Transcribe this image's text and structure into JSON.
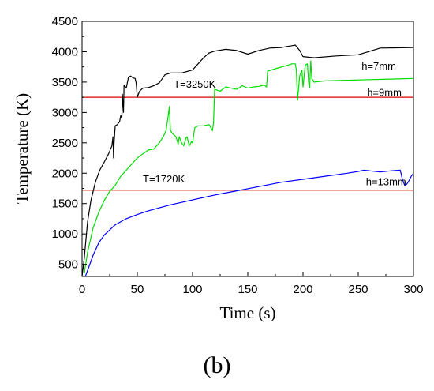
{
  "panel_label": "(b)",
  "chart_data": {
    "type": "line",
    "xlabel": "Time (s)",
    "ylabel": "Temperature (K)",
    "xlim": [
      0,
      300
    ],
    "ylim": [
      300,
      4500
    ],
    "xticks": [
      0,
      50,
      100,
      150,
      200,
      250,
      300
    ],
    "yticks": [
      500,
      1000,
      1500,
      2000,
      2500,
      3000,
      3500,
      4000,
      4500
    ],
    "grid": false,
    "series": [
      {
        "name": "h=7mm",
        "color": "#000000",
        "points": [
          [
            0,
            300
          ],
          [
            2,
            600
          ],
          [
            5,
            1200
          ],
          [
            8,
            1550
          ],
          [
            12,
            1850
          ],
          [
            16,
            2050
          ],
          [
            20,
            2180
          ],
          [
            24,
            2320
          ],
          [
            27,
            2450
          ],
          [
            28,
            2600
          ],
          [
            28.5,
            2250
          ],
          [
            29,
            2500
          ],
          [
            30,
            2780
          ],
          [
            32,
            2800
          ],
          [
            34,
            2850
          ],
          [
            35,
            2950
          ],
          [
            36,
            2900
          ],
          [
            36.5,
            3300
          ],
          [
            37.5,
            3000
          ],
          [
            38,
            3450
          ],
          [
            40,
            3400
          ],
          [
            42,
            3580
          ],
          [
            44,
            3600
          ],
          [
            46,
            3570
          ],
          [
            48,
            3560
          ],
          [
            49,
            3480
          ],
          [
            50,
            3250
          ],
          [
            52,
            3350
          ],
          [
            55,
            3400
          ],
          [
            60,
            3410
          ],
          [
            65,
            3440
          ],
          [
            70,
            3490
          ],
          [
            75,
            3620
          ],
          [
            80,
            3650
          ],
          [
            90,
            3650
          ],
          [
            100,
            3700
          ],
          [
            105,
            3800
          ],
          [
            110,
            3900
          ],
          [
            115,
            3980
          ],
          [
            120,
            4010
          ],
          [
            130,
            4040
          ],
          [
            140,
            4020
          ],
          [
            150,
            3960
          ],
          [
            160,
            4020
          ],
          [
            170,
            4060
          ],
          [
            180,
            4070
          ],
          [
            190,
            4100
          ],
          [
            193,
            4110
          ],
          [
            197,
            4020
          ],
          [
            200,
            3920
          ],
          [
            210,
            3900
          ],
          [
            230,
            3930
          ],
          [
            250,
            3950
          ],
          [
            270,
            4060
          ],
          [
            300,
            4070
          ]
        ]
      },
      {
        "name": "h=9mm",
        "color": "#00dd00",
        "points": [
          [
            2,
            350
          ],
          [
            5,
            700
          ],
          [
            10,
            1100
          ],
          [
            15,
            1350
          ],
          [
            20,
            1550
          ],
          [
            25,
            1700
          ],
          [
            30,
            1800
          ],
          [
            35,
            1950
          ],
          [
            40,
            2050
          ],
          [
            45,
            2150
          ],
          [
            50,
            2250
          ],
          [
            55,
            2320
          ],
          [
            60,
            2380
          ],
          [
            65,
            2400
          ],
          [
            70,
            2500
          ],
          [
            74,
            2620
          ],
          [
            76,
            2700
          ],
          [
            78,
            2950
          ],
          [
            79,
            3100
          ],
          [
            80,
            2700
          ],
          [
            82,
            2650
          ],
          [
            85,
            2600
          ],
          [
            87,
            2480
          ],
          [
            88,
            2600
          ],
          [
            90,
            2500
          ],
          [
            92,
            2450
          ],
          [
            94,
            2580
          ],
          [
            95,
            2600
          ],
          [
            97,
            2450
          ],
          [
            99,
            2520
          ],
          [
            100,
            2500
          ],
          [
            102,
            2750
          ],
          [
            105,
            2780
          ],
          [
            110,
            2780
          ],
          [
            115,
            2800
          ],
          [
            118,
            2700
          ],
          [
            119,
            2830
          ],
          [
            120,
            3380
          ],
          [
            125,
            3350
          ],
          [
            130,
            3420
          ],
          [
            135,
            3400
          ],
          [
            140,
            3380
          ],
          [
            145,
            3440
          ],
          [
            150,
            3400
          ],
          [
            155,
            3420
          ],
          [
            160,
            3430
          ],
          [
            165,
            3450
          ],
          [
            167,
            3420
          ],
          [
            168,
            3680
          ],
          [
            175,
            3720
          ],
          [
            185,
            3770
          ],
          [
            190,
            3800
          ],
          [
            193,
            3800
          ],
          [
            194,
            3700
          ],
          [
            195,
            3200
          ],
          [
            196,
            3400
          ],
          [
            197,
            3600
          ],
          [
            199,
            3700
          ],
          [
            200,
            3420
          ],
          [
            202,
            3780
          ],
          [
            204,
            3800
          ],
          [
            205,
            3500
          ],
          [
            206,
            3400
          ],
          [
            207,
            3850
          ],
          [
            208,
            3560
          ],
          [
            210,
            3500
          ],
          [
            220,
            3520
          ],
          [
            240,
            3530
          ],
          [
            260,
            3540
          ],
          [
            280,
            3550
          ],
          [
            300,
            3560
          ]
        ]
      },
      {
        "name": "h=13mm",
        "color": "#0000ff",
        "points": [
          [
            3,
            300
          ],
          [
            6,
            450
          ],
          [
            10,
            650
          ],
          [
            15,
            850
          ],
          [
            20,
            980
          ],
          [
            30,
            1150
          ],
          [
            40,
            1250
          ],
          [
            50,
            1320
          ],
          [
            60,
            1380
          ],
          [
            70,
            1430
          ],
          [
            80,
            1480
          ],
          [
            100,
            1560
          ],
          [
            120,
            1640
          ],
          [
            140,
            1710
          ],
          [
            160,
            1780
          ],
          [
            180,
            1850
          ],
          [
            200,
            1900
          ],
          [
            220,
            1950
          ],
          [
            240,
            2000
          ],
          [
            250,
            2030
          ],
          [
            255,
            2050
          ],
          [
            260,
            2040
          ],
          [
            270,
            2020
          ],
          [
            280,
            2040
          ],
          [
            288,
            2050
          ],
          [
            290,
            1900
          ],
          [
            292,
            1800
          ],
          [
            294,
            1820
          ],
          [
            296,
            1880
          ],
          [
            298,
            1950
          ],
          [
            300,
            2000
          ]
        ]
      }
    ],
    "reference_lines": [
      {
        "label": "T=3250K",
        "y": 3250,
        "color": "#dd0000"
      },
      {
        "label": "T=1720K",
        "y": 1720,
        "color": "#dd0000"
      }
    ],
    "series_labels": [
      {
        "text": "h=7mm",
        "x": 253,
        "y": 3710
      },
      {
        "text": "h=9mm",
        "x": 258,
        "y": 3270
      },
      {
        "text": "h=13mm",
        "x": 257,
        "y": 1800
      }
    ],
    "line_labels": [
      {
        "text": "T=3250K",
        "x": 83,
        "y": 3410
      },
      {
        "text": "T=1720K",
        "x": 55,
        "y": 1850
      }
    ]
  }
}
